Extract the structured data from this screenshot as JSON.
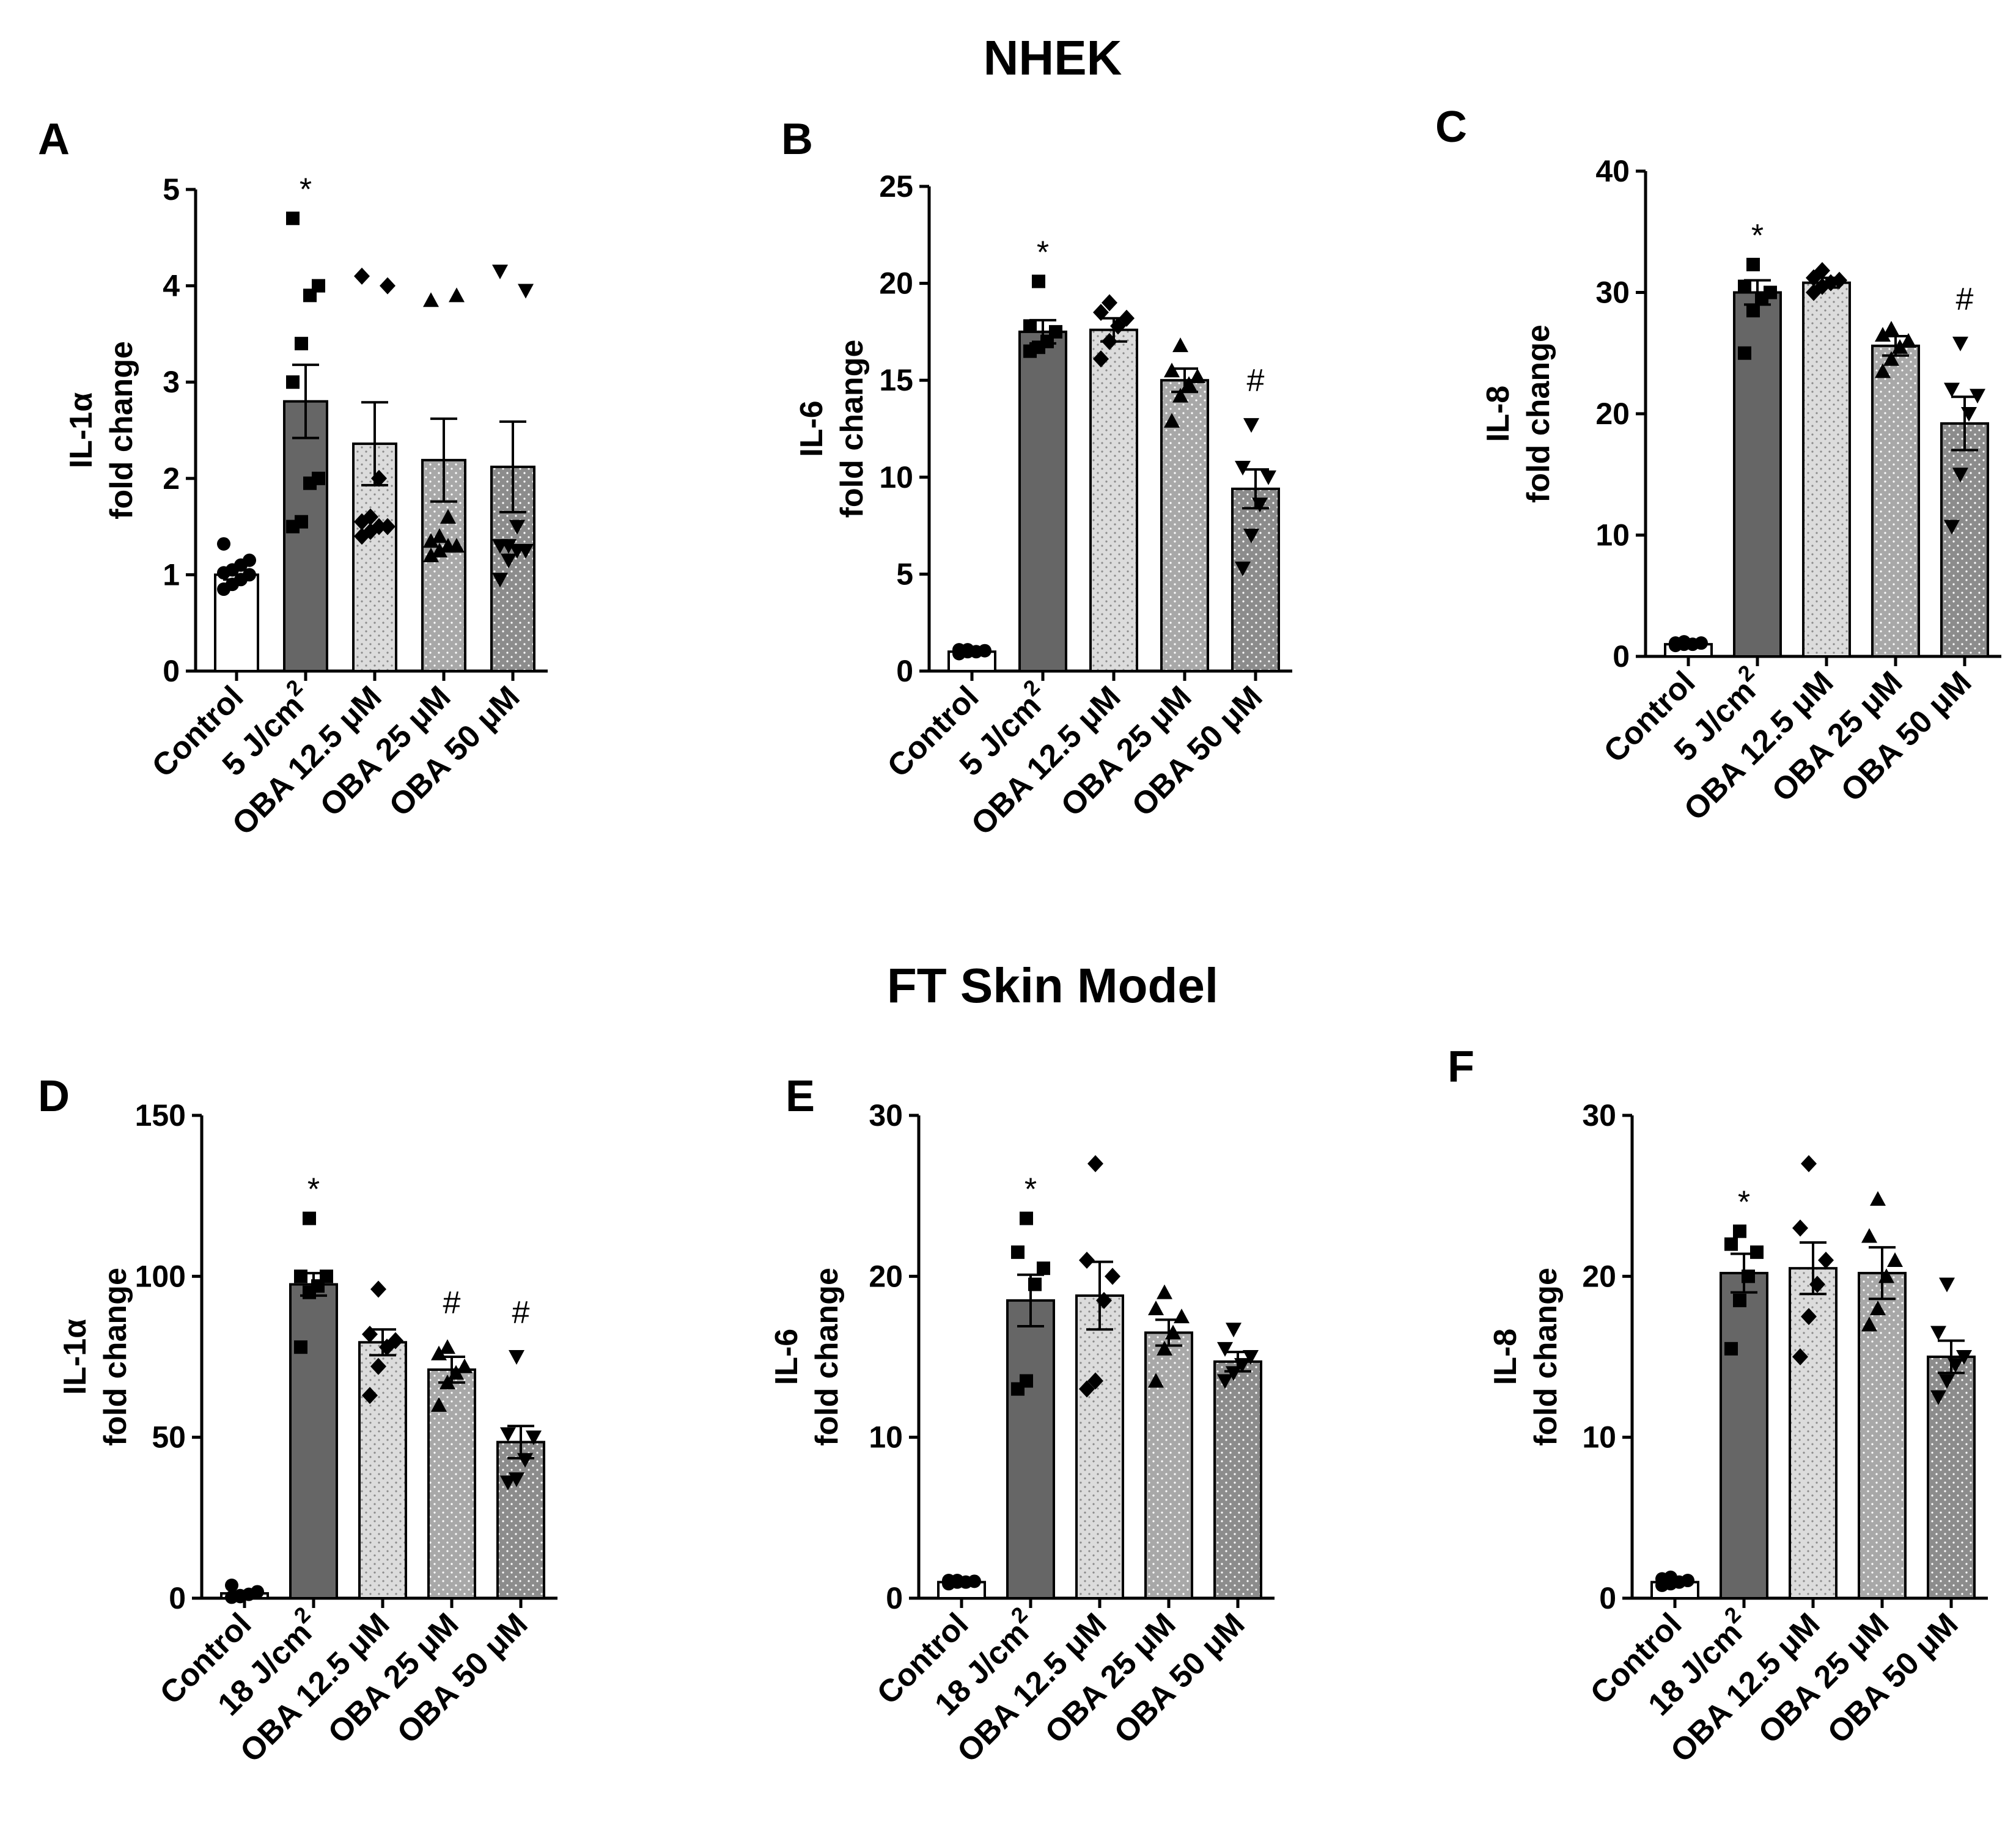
{
  "figure": {
    "section_titles": [
      "NHEK",
      "FT Skin Model"
    ]
  },
  "chart_data": [
    {
      "panel": "A",
      "type": "bar",
      "section": "NHEK",
      "ylabel": [
        "IL-1α",
        "fold change"
      ],
      "categories": [
        "Control",
        "5 J/cm",
        "OBA 12.5 μM",
        "OBA 25 μM",
        "OBA 50 μM"
      ],
      "category_superscripts": [
        "",
        "2",
        "",
        "",
        ""
      ],
      "ylim": [
        0,
        5
      ],
      "yticks": [
        0,
        1,
        2,
        3,
        4,
        5
      ],
      "values": [
        1.0,
        2.8,
        2.36,
        2.19,
        2.12
      ],
      "sem": [
        0.05,
        0.38,
        0.43,
        0.43,
        0.47
      ],
      "significance": [
        "",
        "*",
        "",
        "",
        ""
      ],
      "points": [
        [
          0.85,
          0.9,
          0.95,
          1.0,
          1.02,
          1.05,
          1.1,
          1.15,
          1.32
        ],
        [
          1.5,
          1.55,
          1.95,
          2.0,
          3.0,
          3.4,
          3.9,
          4.0,
          4.7
        ],
        [
          1.4,
          1.45,
          1.5,
          1.5,
          1.55,
          1.6,
          2.0,
          4.0,
          4.1
        ],
        [
          1.2,
          1.25,
          1.3,
          1.3,
          1.35,
          1.4,
          1.6,
          3.9,
          3.85
        ],
        [
          0.95,
          1.15,
          1.25,
          1.25,
          1.3,
          1.3,
          1.5,
          3.95,
          4.15
        ]
      ],
      "markers": [
        "circle",
        "square",
        "diamond",
        "triangle-up",
        "triangle-down"
      ],
      "fills": [
        "#ffffff",
        "#6b6b6b",
        "#d9d9d9",
        "#a6a6a6",
        "#8c8c8c"
      ]
    },
    {
      "panel": "B",
      "type": "bar",
      "section": "NHEK",
      "ylabel": [
        "IL-6",
        "fold change"
      ],
      "categories": [
        "Control",
        "5 J/cm",
        "OBA 12.5 μM",
        "OBA 25 μM",
        "OBA 50 μM"
      ],
      "category_superscripts": [
        "",
        "2",
        "",
        "",
        ""
      ],
      "ylim": [
        0,
        25
      ],
      "yticks": [
        0,
        5,
        10,
        15,
        20,
        25
      ],
      "values": [
        1.0,
        17.5,
        17.6,
        15.0,
        9.4
      ],
      "sem": [
        0.1,
        0.6,
        0.6,
        0.6,
        1.0
      ],
      "significance": [
        "",
        "*",
        "",
        "",
        "#"
      ],
      "points": [
        [
          0.9,
          1.0,
          1.0,
          1.05,
          1.1,
          1.1
        ],
        [
          16.5,
          16.7,
          17.0,
          17.5,
          17.8,
          20.1
        ],
        [
          16.1,
          17.0,
          17.8,
          18.2,
          18.5,
          19.0
        ],
        [
          12.9,
          14.2,
          14.8,
          15.2,
          15.5,
          16.8
        ],
        [
          5.3,
          7.0,
          8.6,
          10.0,
          10.5,
          12.7
        ]
      ],
      "markers": [
        "circle",
        "square",
        "diamond",
        "triangle-up",
        "triangle-down"
      ],
      "fills": [
        "#ffffff",
        "#6b6b6b",
        "#d9d9d9",
        "#a6a6a6",
        "#8c8c8c"
      ]
    },
    {
      "panel": "C",
      "type": "bar",
      "section": "NHEK",
      "ylabel": [
        "IL-8",
        "fold change"
      ],
      "categories": [
        "Control",
        "5 J/cm",
        "OBA 12.5 μM",
        "OBA 25 μM",
        "OBA 50 μM"
      ],
      "category_superscripts": [
        "",
        "2",
        "",
        "",
        ""
      ],
      "ylim": [
        0,
        40
      ],
      "yticks": [
        0,
        10,
        20,
        30,
        40
      ],
      "values": [
        1.0,
        30.0,
        30.8,
        25.6,
        19.2
      ],
      "sem": [
        0.1,
        1.0,
        0.4,
        0.8,
        2.2
      ],
      "significance": [
        "",
        "*",
        "",
        "",
        "#"
      ],
      "points": [
        [
          0.9,
          1.0,
          1.0,
          1.1,
          1.1,
          1.2
        ],
        [
          25.0,
          28.5,
          29.5,
          30.0,
          30.5,
          32.3
        ],
        [
          30.0,
          30.5,
          30.8,
          31.0,
          31.2,
          31.8
        ],
        [
          23.5,
          24.5,
          25.5,
          26.0,
          26.5,
          27.0
        ],
        [
          10.7,
          15.0,
          20.0,
          21.5,
          22.0,
          25.8
        ]
      ],
      "markers": [
        "circle",
        "square",
        "diamond",
        "triangle-up",
        "triangle-down"
      ],
      "fills": [
        "#ffffff",
        "#6b6b6b",
        "#d9d9d9",
        "#a6a6a6",
        "#8c8c8c"
      ]
    },
    {
      "panel": "D",
      "type": "bar",
      "section": "FT Skin Model",
      "ylabel": [
        "IL-1α",
        "fold change"
      ],
      "categories": [
        "Control",
        "18 J/cm",
        "OBA 12.5 μM",
        "OBA 25 μM",
        "OBA 50 μM"
      ],
      "category_superscripts": [
        "",
        "2",
        "",
        "",
        ""
      ],
      "ylim": [
        0,
        150
      ],
      "yticks": [
        0,
        50,
        100,
        150
      ],
      "values": [
        1.5,
        97.5,
        79.5,
        71.0,
        48.5
      ],
      "sem": [
        0.5,
        3.5,
        4.0,
        4.0,
        5.0
      ],
      "significance": [
        "",
        "*",
        "",
        "#",
        "#"
      ],
      "points": [
        [
          0.3,
          0.8,
          1.2,
          2.0,
          4.0,
          0.5
        ],
        [
          78.0,
          95.0,
          97.0,
          100.0,
          100.0,
          118.0
        ],
        [
          63.0,
          72.0,
          78.0,
          80.0,
          82.0,
          96.0
        ],
        [
          60.0,
          67.0,
          70.0,
          72.0,
          76.0,
          78.0
        ],
        [
          36.0,
          37.0,
          43.0,
          50.0,
          51.0,
          75.0
        ]
      ],
      "markers": [
        "circle",
        "square",
        "diamond",
        "triangle-up",
        "triangle-down"
      ],
      "fills": [
        "#ffffff",
        "#6b6b6b",
        "#d9d9d9",
        "#a6a6a6",
        "#8c8c8c"
      ]
    },
    {
      "panel": "E",
      "type": "bar",
      "section": "FT Skin Model",
      "ylabel": [
        "IL-6",
        "fold change"
      ],
      "categories": [
        "Control",
        "18 J/cm",
        "OBA 12.5 μM",
        "OBA 25 μM",
        "OBA 50 μM"
      ],
      "category_superscripts": [
        "",
        "2",
        "",
        "",
        ""
      ],
      "ylim": [
        0,
        30
      ],
      "yticks": [
        0,
        10,
        20,
        30
      ],
      "values": [
        1.0,
        18.5,
        18.8,
        16.5,
        14.7
      ],
      "sem": [
        0.1,
        1.6,
        2.1,
        0.8,
        0.6
      ],
      "significance": [
        "",
        "*",
        "",
        "",
        ""
      ],
      "points": [
        [
          0.9,
          1.0,
          1.0,
          1.05,
          1.1,
          1.1
        ],
        [
          13.0,
          13.5,
          19.5,
          20.5,
          21.5,
          23.6
        ],
        [
          13.0,
          13.5,
          18.5,
          20.0,
          21.0,
          27.0
        ],
        [
          13.5,
          15.5,
          16.5,
          17.5,
          18.0,
          19.0
        ],
        [
          13.5,
          14.0,
          14.5,
          15.0,
          15.5,
          16.7
        ]
      ],
      "markers": [
        "circle",
        "square",
        "diamond",
        "triangle-up",
        "triangle-down"
      ],
      "fills": [
        "#ffffff",
        "#6b6b6b",
        "#d9d9d9",
        "#a6a6a6",
        "#8c8c8c"
      ]
    },
    {
      "panel": "F",
      "type": "bar",
      "section": "FT Skin Model",
      "ylabel": [
        "IL-8",
        "fold change"
      ],
      "categories": [
        "Control",
        "18 J/cm",
        "OBA 12.5 μM",
        "OBA 25 μM",
        "OBA 50 μM"
      ],
      "category_superscripts": [
        "",
        "2",
        "",
        "",
        ""
      ],
      "ylim": [
        0,
        30
      ],
      "yticks": [
        0,
        10,
        20,
        30
      ],
      "values": [
        1.0,
        20.2,
        20.5,
        20.2,
        15.0
      ],
      "sem": [
        0.1,
        1.2,
        1.6,
        1.6,
        1.0
      ],
      "significance": [
        "",
        "*",
        "",
        "",
        ""
      ],
      "points": [
        [
          0.8,
          0.9,
          1.0,
          1.1,
          1.2,
          1.3
        ],
        [
          15.5,
          18.5,
          20.0,
          21.5,
          22.0,
          22.8
        ],
        [
          15.0,
          17.5,
          19.5,
          21.0,
          23.0,
          27.0
        ],
        [
          17.0,
          18.0,
          20.0,
          21.0,
          22.5,
          24.8
        ],
        [
          12.5,
          13.5,
          14.5,
          15.0,
          16.5,
          19.5
        ]
      ],
      "markers": [
        "circle",
        "square",
        "diamond",
        "triangle-up",
        "triangle-down"
      ],
      "fills": [
        "#ffffff",
        "#6b6b6b",
        "#d9d9d9",
        "#a6a6a6",
        "#8c8c8c"
      ]
    }
  ]
}
